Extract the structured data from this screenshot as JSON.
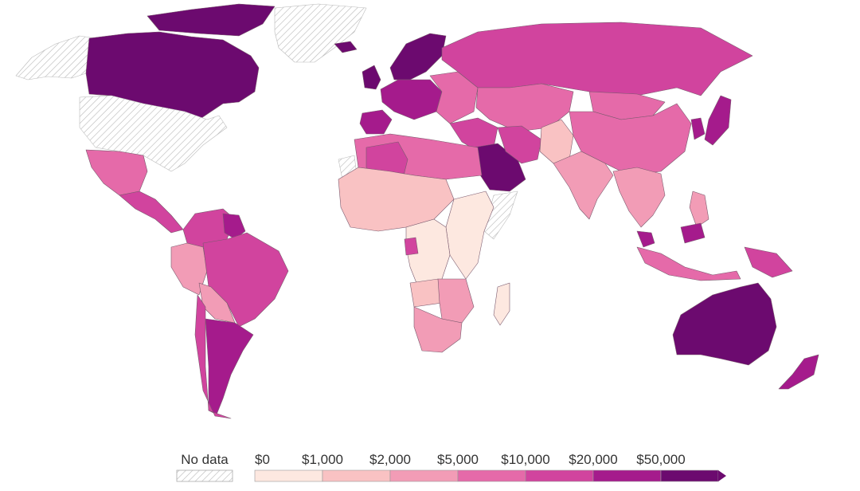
{
  "legend": {
    "no_data_label": "No data",
    "bins": [
      {
        "label": "$0",
        "color": "#fde8e0"
      },
      {
        "label": "$1,000",
        "color": "#f9c2c3"
      },
      {
        "label": "$2,000",
        "color": "#f29cb6"
      },
      {
        "label": "$5,000",
        "color": "#e56aa9"
      },
      {
        "label": "$10,000",
        "color": "#d1449e"
      },
      {
        "label": "$20,000",
        "color": "#a51b8c"
      },
      {
        "label": "$50,000",
        "color": "#6c0a6f"
      }
    ]
  },
  "regions": [
    {
      "id": "canada",
      "color": "#6c0a6f"
    },
    {
      "id": "usa",
      "color": "nodata"
    },
    {
      "id": "alaska",
      "color": "nodata"
    },
    {
      "id": "greenland",
      "color": "nodata"
    },
    {
      "id": "canadian-arctic",
      "color": "#6c0a6f"
    },
    {
      "id": "mexico",
      "color": "#e56aa9"
    },
    {
      "id": "central-america",
      "color": "#d1449e"
    },
    {
      "id": "colombia-venezuela",
      "color": "#d1449e"
    },
    {
      "id": "guianas",
      "color": "#a51b8c"
    },
    {
      "id": "peru",
      "color": "#f29cb6"
    },
    {
      "id": "brazil",
      "color": "#d1449e"
    },
    {
      "id": "bolivia-paraguay",
      "color": "#f29cb6"
    },
    {
      "id": "argentina",
      "color": "#a51b8c"
    },
    {
      "id": "chile",
      "color": "#d1449e"
    },
    {
      "id": "western-europe",
      "color": "#a51b8c"
    },
    {
      "id": "scandinavia",
      "color": "#6c0a6f"
    },
    {
      "id": "iberia",
      "color": "#a51b8c"
    },
    {
      "id": "uk-ireland",
      "color": "#6c0a6f"
    },
    {
      "id": "iceland",
      "color": "#6c0a6f"
    },
    {
      "id": "eastern-europe",
      "color": "#e56aa9"
    },
    {
      "id": "russia",
      "color": "#d1449e"
    },
    {
      "id": "kazakhstan-central-asia",
      "color": "#e56aa9"
    },
    {
      "id": "middle-east",
      "color": "#d1449e"
    },
    {
      "id": "saudi-arabia",
      "color": "#6c0a6f"
    },
    {
      "id": "iran",
      "color": "#d1449e"
    },
    {
      "id": "afghanistan-pakistan",
      "color": "#f9c2c3"
    },
    {
      "id": "china",
      "color": "#e56aa9"
    },
    {
      "id": "mongolia",
      "color": "#e56aa9"
    },
    {
      "id": "india",
      "color": "#f29cb6"
    },
    {
      "id": "southeast-asia",
      "color": "#f29cb6"
    },
    {
      "id": "japan",
      "color": "#a51b8c"
    },
    {
      "id": "korea",
      "color": "#a51b8c"
    },
    {
      "id": "indonesia",
      "color": "#e56aa9"
    },
    {
      "id": "philippines",
      "color": "#f29cb6"
    },
    {
      "id": "new-guinea",
      "color": "#d1449e"
    },
    {
      "id": "malaysia",
      "color": "#a51b8c"
    },
    {
      "id": "australia",
      "color": "#6c0a6f"
    },
    {
      "id": "new-zealand",
      "color": "#a51b8c"
    },
    {
      "id": "north-africa",
      "color": "#e56aa9"
    },
    {
      "id": "algeria",
      "color": "#d1449e"
    },
    {
      "id": "west-africa",
      "color": "#f9c2c3"
    },
    {
      "id": "central-africa",
      "color": "#fde8e0"
    },
    {
      "id": "east-africa",
      "color": "#fde8e0"
    },
    {
      "id": "gabon",
      "color": "#d1449e"
    },
    {
      "id": "angola",
      "color": "#f9c2c3"
    },
    {
      "id": "southern-africa",
      "color": "#f29cb6"
    },
    {
      "id": "south-africa",
      "color": "#f29cb6"
    },
    {
      "id": "madagascar",
      "color": "#fde8e0"
    },
    {
      "id": "somalia",
      "color": "nodata"
    },
    {
      "id": "western-sahara",
      "color": "nodata"
    }
  ]
}
